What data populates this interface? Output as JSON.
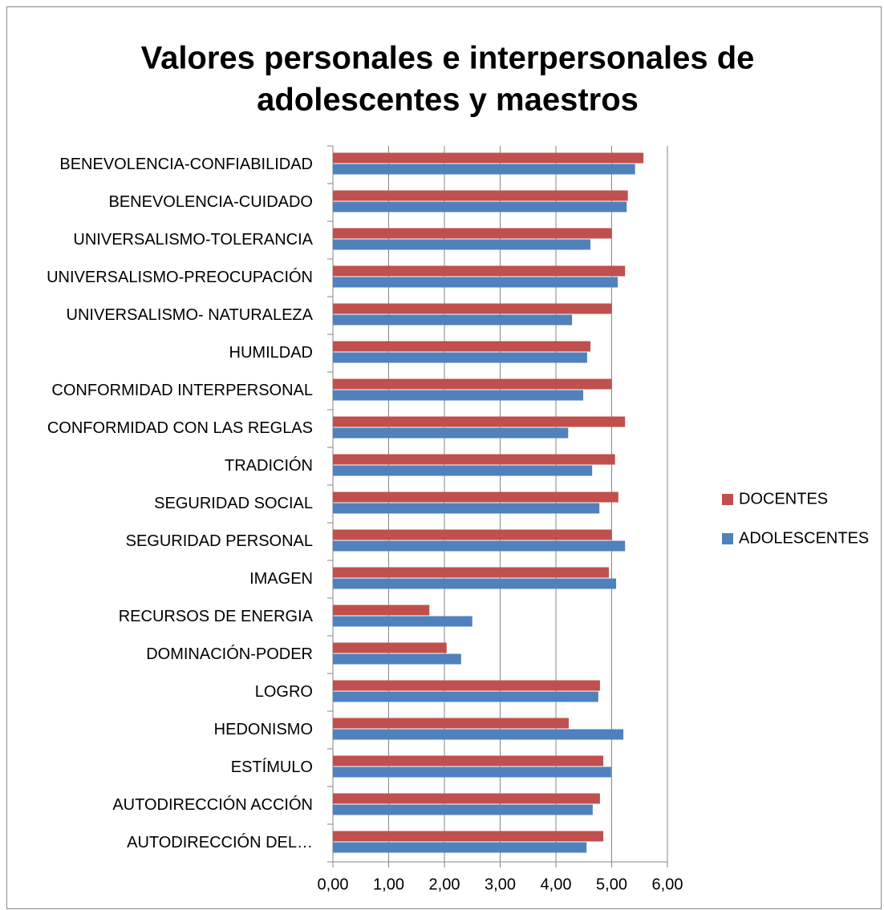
{
  "chart_data": {
    "type": "hbar",
    "title_lines": [
      "Valores personales e interpersonales de",
      "adolescentes y maestros"
    ],
    "categories": [
      "BENEVOLENCIA-CONFIABILIDAD",
      "BENEVOLENCIA-CUIDADO",
      "UNIVERSALISMO-TOLERANCIA",
      "UNIVERSALISMO-PREOCUPACIÓN",
      "UNIVERSALISMO- NATURALEZA",
      "HUMILDAD",
      "CONFORMIDAD INTERPERSONAL",
      "CONFORMIDAD CON LAS REGLAS",
      "TRADICIÓN",
      "SEGURIDAD SOCIAL",
      "SEGURIDAD PERSONAL",
      "IMAGEN",
      "RECURSOS DE ENERGIA",
      "DOMINACIÓN-PODER",
      "LOGRO",
      "HEDONISMO",
      "ESTÍMULO",
      "AUTODIRECCIÓN ACCIÓN",
      "AUTODIRECCIÓN DEL…"
    ],
    "series": [
      {
        "name": "DOCENTES",
        "color": "#c0504d",
        "values": [
          5.57,
          5.29,
          5.0,
          5.24,
          5.0,
          4.62,
          5.0,
          5.24,
          5.06,
          5.12,
          5.0,
          4.95,
          1.73,
          2.04,
          4.79,
          4.23,
          4.85,
          4.79,
          4.85
        ]
      },
      {
        "name": "ADOLESCENTES",
        "color": "#4f81bd",
        "values": [
          5.42,
          5.27,
          4.62,
          5.11,
          4.29,
          4.56,
          4.49,
          4.22,
          4.65,
          4.78,
          5.24,
          5.08,
          2.5,
          2.3,
          4.76,
          5.21,
          4.99,
          4.66,
          4.55
        ]
      }
    ],
    "xlim": [
      0,
      6
    ],
    "xticks": [
      {
        "value": 0,
        "label": "0,00"
      },
      {
        "value": 1,
        "label": "1,00"
      },
      {
        "value": 2,
        "label": "2,00"
      },
      {
        "value": 3,
        "label": "3,00"
      },
      {
        "value": 4,
        "label": "4,00"
      },
      {
        "value": 5,
        "label": "5,00"
      },
      {
        "value": 6,
        "label": "6,00"
      }
    ],
    "grid": true,
    "legend": "right"
  }
}
